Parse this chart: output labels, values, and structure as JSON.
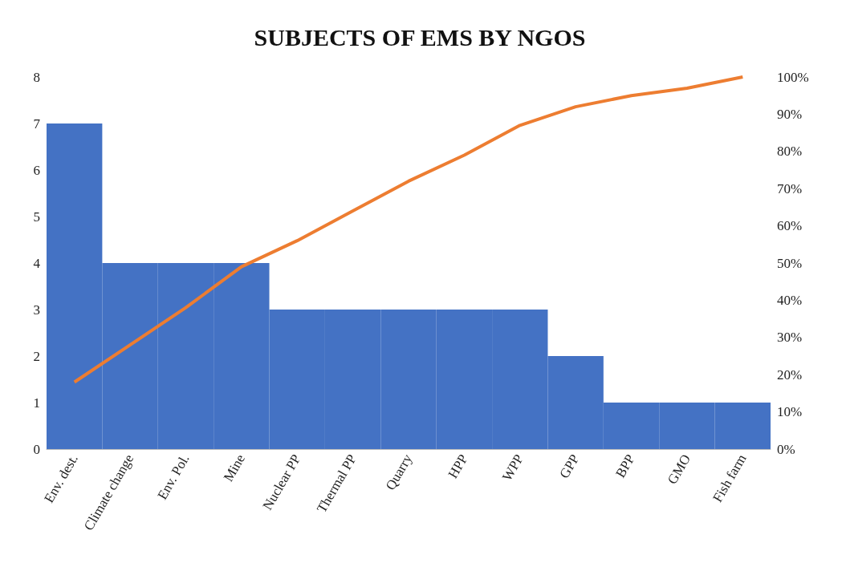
{
  "chart_data": {
    "type": "bar",
    "title": "SUBJECTS OF EMS BY NGOS",
    "categories": [
      "Env. dest.",
      "Climate change",
      "Env. Pol.",
      "Mine",
      "Nuclear PP",
      "Thermal PP",
      "Quarry",
      "HPP",
      "WPP",
      "GPP",
      "BPP",
      "GMO",
      "Fish farm"
    ],
    "series": [
      {
        "color": "#4472c4",
        "values": [
          7,
          4,
          4,
          4,
          3,
          3,
          3,
          3,
          3,
          2,
          1,
          1,
          1
        ]
      },
      {
        "type": "line",
        "axis": "y2",
        "color": "#ed7d31",
        "values": [
          18,
          28,
          38,
          49,
          56,
          64,
          72,
          79,
          87,
          92,
          95,
          97,
          100
        ]
      }
    ],
    "ylim": [
      0,
      8
    ],
    "yticks": [
      0,
      1,
      2,
      3,
      4,
      5,
      6,
      7,
      8
    ],
    "y2lim": [
      0,
      100
    ],
    "y2ticks": [
      {
        "value": 0,
        "label": "0%"
      },
      {
        "value": 10,
        "label": "10%"
      },
      {
        "value": 20,
        "label": "20%"
      },
      {
        "value": 30,
        "label": "30%"
      },
      {
        "value": 40,
        "label": "40%"
      },
      {
        "value": 50,
        "label": "50%"
      },
      {
        "value": 60,
        "label": "60%"
      },
      {
        "value": 70,
        "label": "70%"
      },
      {
        "value": 80,
        "label": "80%"
      },
      {
        "value": 90,
        "label": "90%"
      },
      {
        "value": 100,
        "label": "100%"
      }
    ],
    "grid": false,
    "marker": "none"
  }
}
